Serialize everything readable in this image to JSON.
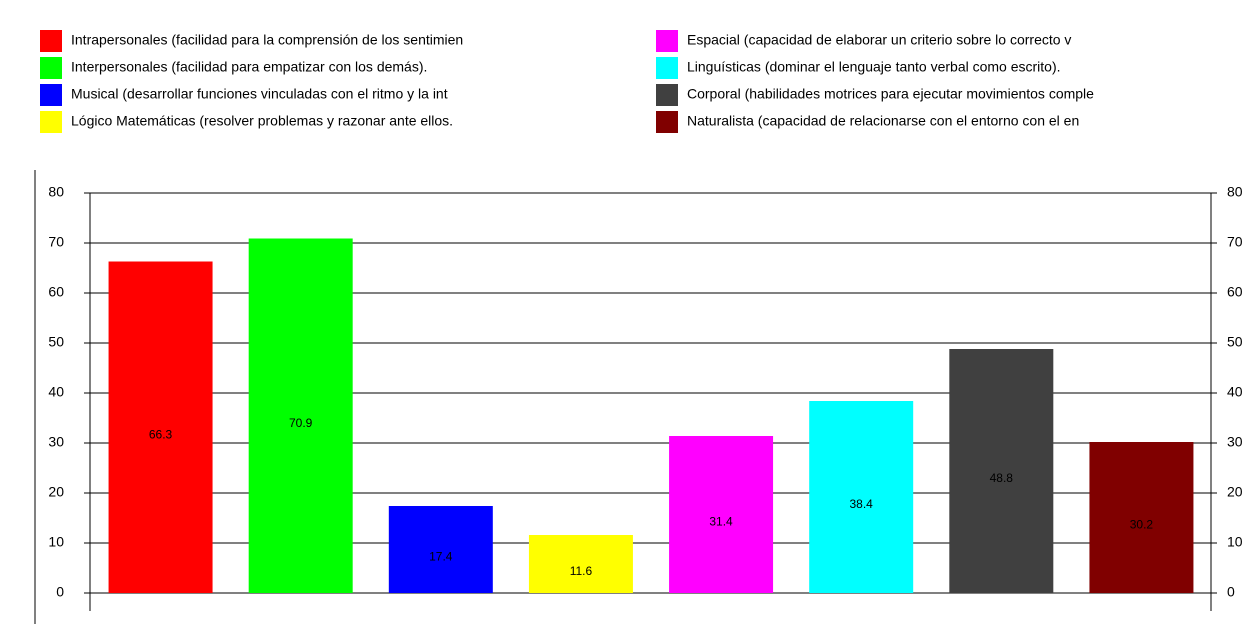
{
  "chart_data": {
    "type": "bar",
    "categories": [
      "Intrapersonales (facilidad para la comprensión de los sentimien",
      "Interpersonales (facilidad para empatizar con los demás).",
      "Musical (desarrollar funciones vinculadas con el ritmo y la int",
      "Lógico Matemáticas (resolver problemas y razonar ante ellos.",
      "Espacial (capacidad de elaborar un criterio sobre lo correcto v",
      "Linguísticas (dominar el lenguaje tanto verbal como escrito).",
      "Corporal (habilidades motrices para ejecutar movimientos comple",
      "Naturalista (capacidad de relacionarse con el entorno con el en"
    ],
    "values": [
      66.3,
      70.9,
      17.4,
      11.6,
      31.4,
      38.4,
      48.8,
      30.2
    ],
    "colors": [
      "#ff0000",
      "#00ff00",
      "#0000ff",
      "#ffff00",
      "#ff00ff",
      "#00ffff",
      "#404040",
      "#800000"
    ],
    "ylim": [
      0,
      80
    ],
    "yticks": [
      0,
      10,
      20,
      30,
      40,
      50,
      60,
      70,
      80
    ],
    "y2lim": [
      0,
      80
    ],
    "y2ticks": [
      0,
      10,
      20,
      30,
      40,
      50,
      60,
      70,
      80
    ],
    "grid": true
  }
}
